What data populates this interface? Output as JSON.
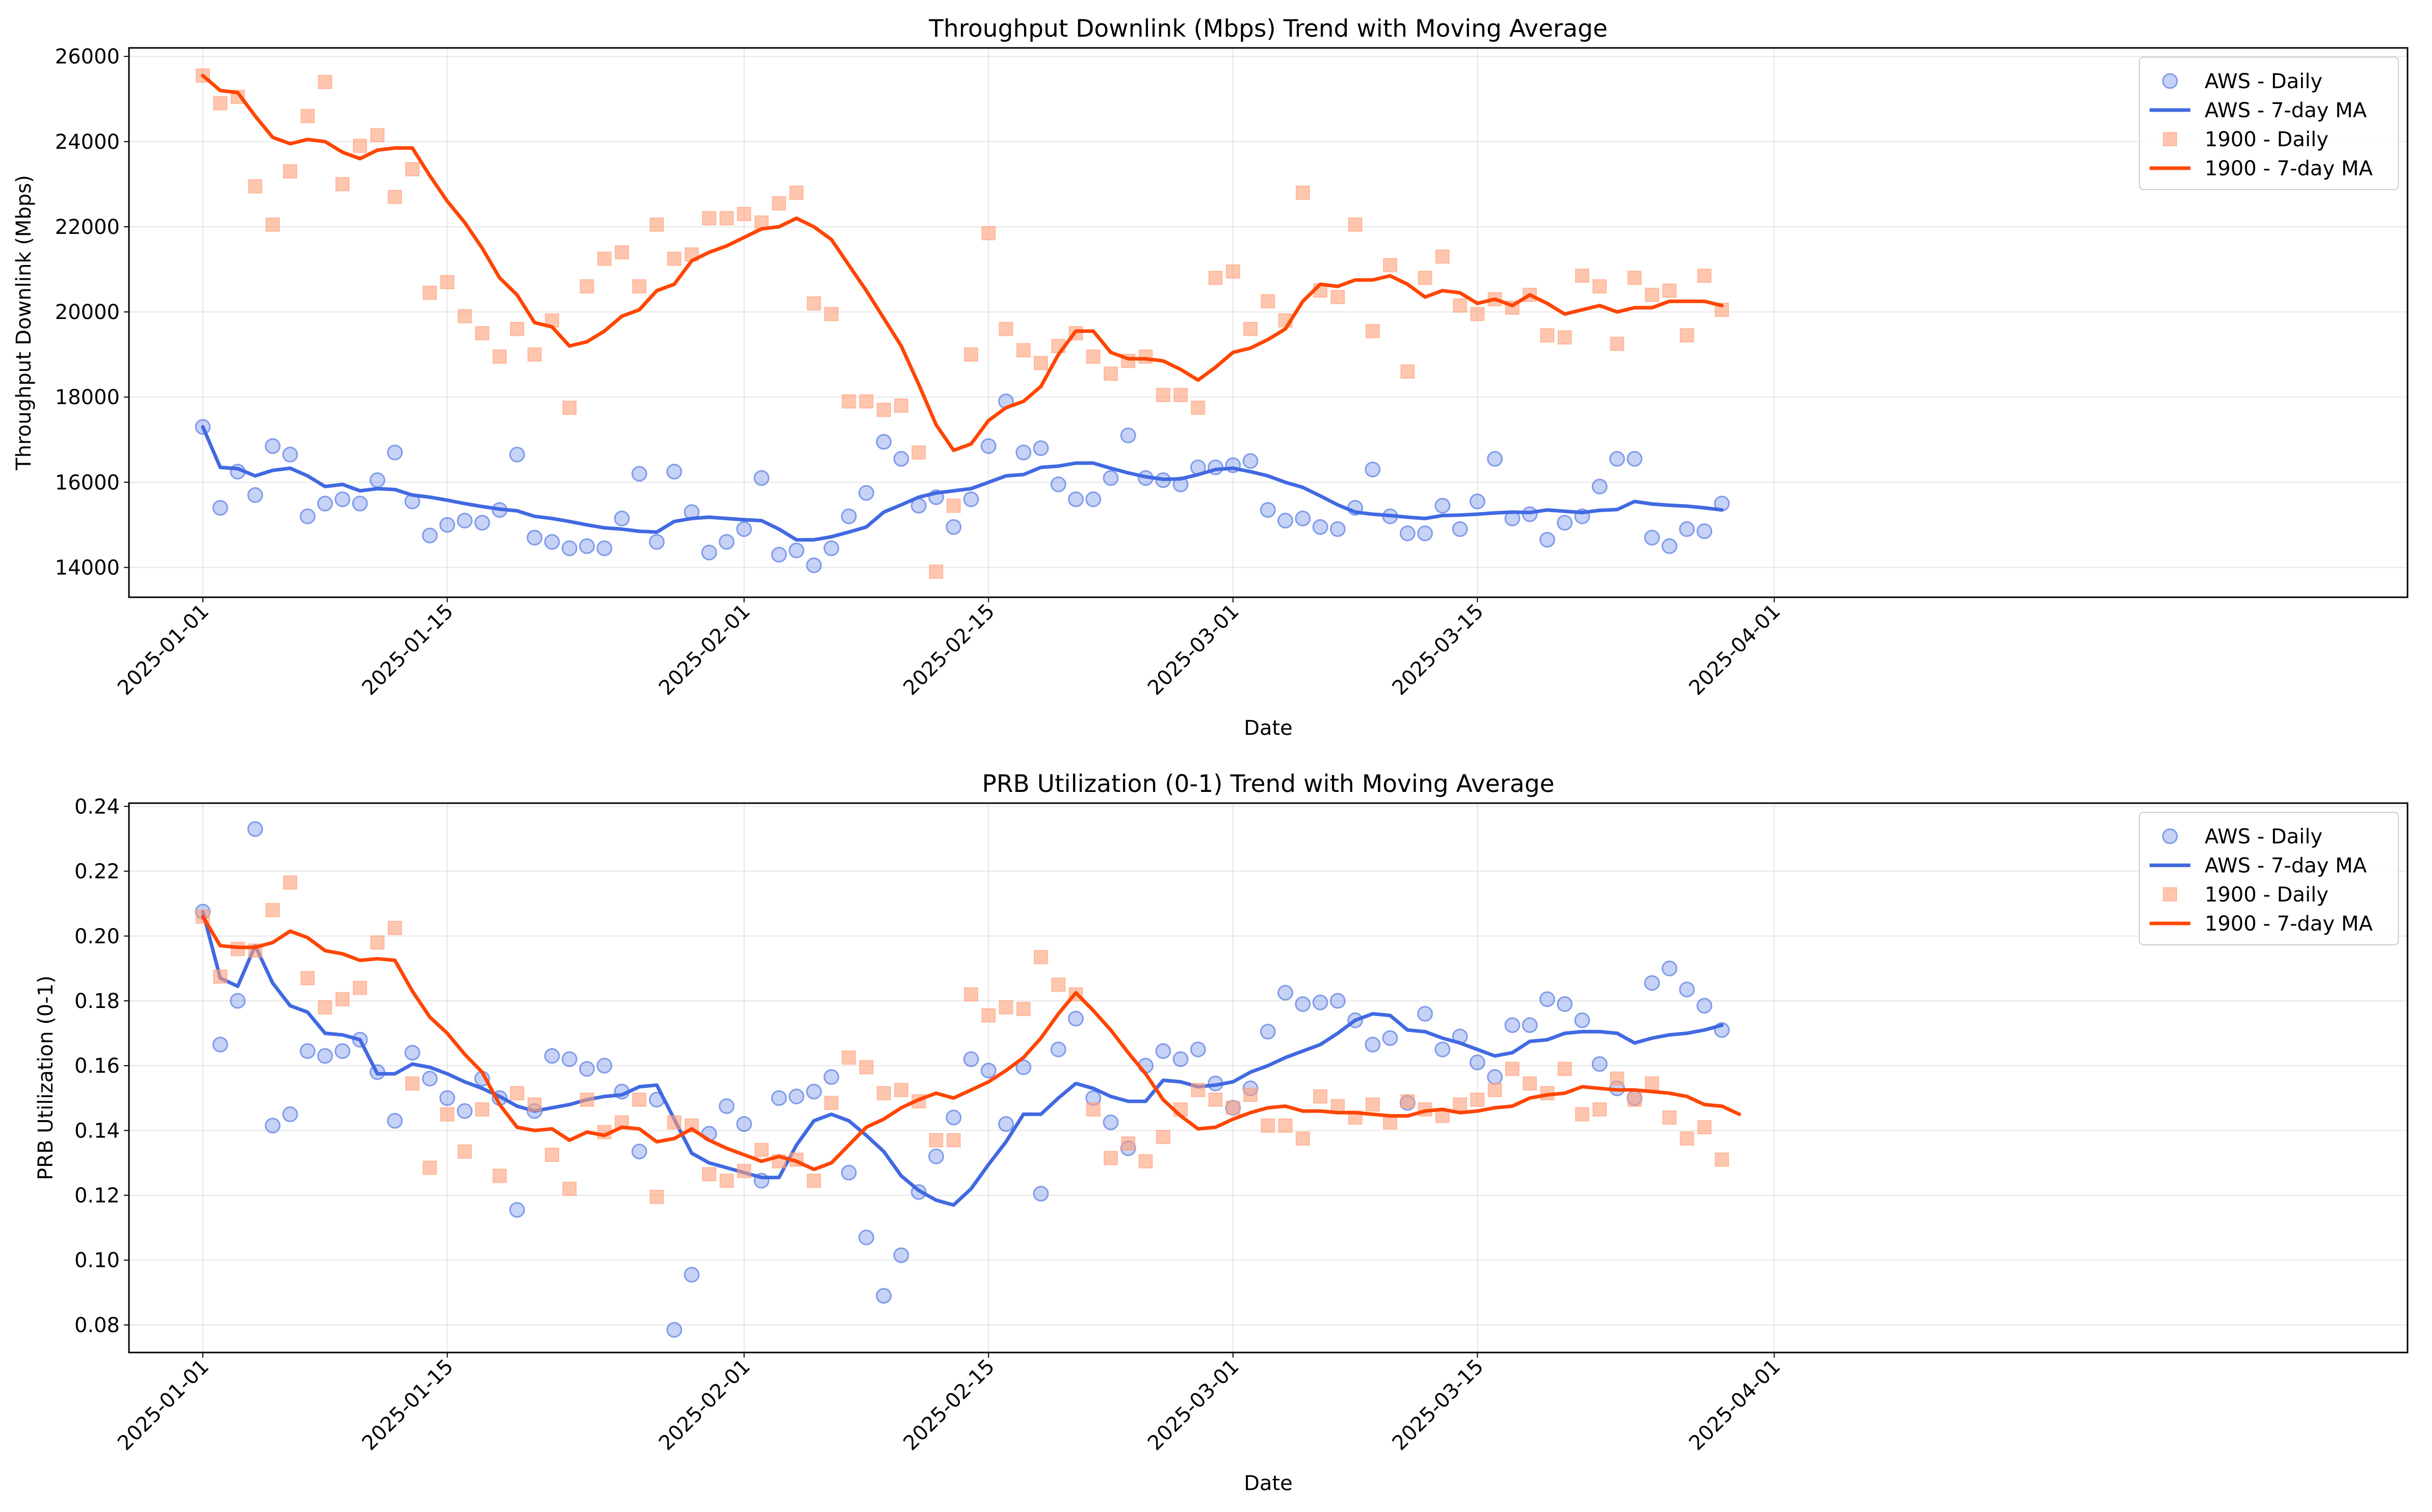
{
  "chart_data": [
    {
      "type": "line",
      "title": "Throughput Downlink (Mbps) Trend with Moving Average",
      "xlabel": "Date",
      "ylabel": "Throughput Downlink (Mbps)",
      "start_date": "2025-01-01",
      "x_ticks": [
        "2025-01-01",
        "2025-01-15",
        "2025-02-01",
        "2025-02-15",
        "2025-03-01",
        "2025-03-15",
        "2025-04-01"
      ],
      "y_ticks": [
        "14000",
        "16000",
        "18000",
        "20000",
        "22000",
        "24000",
        "26000"
      ],
      "ylim": [
        13300,
        26200
      ],
      "legend": "top-right",
      "grid": true,
      "series": [
        {
          "name": "AWS - Daily",
          "style": "scatter",
          "color": "#4169e1",
          "values": [
            17300,
            15400,
            16250,
            15700,
            16850,
            16650,
            15200,
            15500,
            15600,
            15500,
            16050,
            16700,
            15550,
            14750,
            15000,
            15100,
            15050,
            15350,
            16650,
            14700,
            14600,
            14450,
            14500,
            14450,
            15150,
            16200,
            14600,
            16250,
            15300,
            14350,
            14600,
            14900,
            16100,
            14300,
            14400,
            14050,
            14450,
            15200,
            15750,
            16950,
            16550,
            15450,
            15650,
            14950,
            15600,
            16850,
            17900,
            16700,
            16800,
            15950,
            15600,
            15600,
            16100,
            17100,
            16100,
            16050,
            15950,
            16350,
            16350,
            16400,
            16500,
            15350,
            15100,
            15150,
            14950,
            14900,
            15400,
            16300,
            15200,
            14800,
            14800,
            15450,
            14900,
            15550,
            16550,
            15150,
            15250,
            14650,
            15050,
            15200,
            15900,
            16550,
            16550,
            14700,
            14500,
            14900,
            14850,
            15500
          ]
        },
        {
          "name": "AWS - 7-day MA",
          "style": "line",
          "color": "#4169e1",
          "values": [
            17300,
            16350,
            16320,
            16150,
            16280,
            16330,
            16150,
            15900,
            15950,
            15800,
            15850,
            15830,
            15700,
            15650,
            15580,
            15500,
            15430,
            15370,
            15330,
            15200,
            15150,
            15080,
            15000,
            14930,
            14900,
            14850,
            14830,
            15080,
            15150,
            15180,
            15150,
            15120,
            15100,
            14900,
            14650,
            14650,
            14720,
            14830,
            14950,
            15300,
            15470,
            15650,
            15750,
            15800,
            15850,
            16000,
            16150,
            16180,
            16350,
            16380,
            16450,
            16450,
            16330,
            16220,
            16130,
            16070,
            16080,
            16180,
            16300,
            16330,
            16250,
            16150,
            16000,
            15880,
            15680,
            15470,
            15300,
            15250,
            15220,
            15180,
            15150,
            15220,
            15230,
            15250,
            15280,
            15300,
            15290,
            15350,
            15320,
            15290,
            15340,
            15360,
            15550,
            15490,
            15460,
            15440,
            15400,
            15350
          ]
        },
        {
          "name": "1900 - Daily",
          "style": "scatter",
          "color": "#ffa07a",
          "values": [
            25550,
            24900,
            25050,
            22950,
            22050,
            23300,
            24600,
            25400,
            23000,
            23900,
            24150,
            22700,
            23350,
            20450,
            20700,
            19900,
            19500,
            18950,
            19600,
            19000,
            19800,
            17750,
            20600,
            21250,
            21400,
            20600,
            22050,
            21250,
            21350,
            22200,
            22200,
            22300,
            22100,
            22550,
            22800,
            20200,
            19950,
            17900,
            17900,
            17700,
            17800,
            16700,
            13900,
            15450,
            19000,
            21850,
            19600,
            19100,
            18800,
            19200,
            19500,
            18950,
            18550,
            18850,
            18950,
            18050,
            18050,
            17750,
            20800,
            20950,
            19600,
            20250,
            19800,
            22800,
            20500,
            20350,
            22050,
            19550,
            21100,
            18600,
            20800,
            21300,
            20150,
            19950,
            20300,
            20100,
            20400,
            19450,
            19400,
            20850,
            20600,
            19250,
            20800,
            20400,
            20500,
            19450,
            20850,
            20050
          ]
        },
        {
          "name": "1900 - 7-day MA",
          "style": "line",
          "color": "#ff4500",
          "values": [
            25550,
            25200,
            25150,
            24600,
            24100,
            23950,
            24050,
            24000,
            23750,
            23600,
            23800,
            23850,
            23850,
            23200,
            22600,
            22100,
            21500,
            20800,
            20400,
            19750,
            19650,
            19200,
            19300,
            19550,
            19900,
            20050,
            20500,
            20650,
            21200,
            21400,
            21550,
            21750,
            21950,
            22000,
            22200,
            22000,
            21700,
            21100,
            20500,
            19850,
            19200,
            18300,
            17350,
            16750,
            16900,
            17450,
            17750,
            17900,
            18250,
            19000,
            19550,
            19550,
            19050,
            18900,
            18900,
            18850,
            18650,
            18400,
            18700,
            19050,
            19150,
            19350,
            19600,
            20250,
            20650,
            20600,
            20750,
            20750,
            20850,
            20650,
            20350,
            20500,
            20450,
            20200,
            20300,
            20150,
            20400,
            20200,
            19950,
            20050,
            20150,
            20000,
            20100,
            20100,
            20250,
            20250,
            20250,
            20150
          ]
        }
      ]
    },
    {
      "type": "line",
      "title": "PRB Utilization (0-1) Trend with Moving Average",
      "xlabel": "Date",
      "ylabel": "PRB Utilization (0-1)",
      "start_date": "2025-01-01",
      "x_ticks": [
        "2025-01-01",
        "2025-01-15",
        "2025-02-01",
        "2025-02-15",
        "2025-03-01",
        "2025-03-15",
        "2025-04-01"
      ],
      "y_ticks": [
        "0.08",
        "0.10",
        "0.12",
        "0.14",
        "0.16",
        "0.18",
        "0.20",
        "0.22",
        "0.24"
      ],
      "ylim": [
        0.0715,
        0.241
      ],
      "legend": "top-right",
      "grid": true,
      "series": [
        {
          "name": "AWS - Daily",
          "style": "scatter",
          "color": "#4169e1",
          "values": [
            0.2075,
            0.1665,
            0.18,
            0.233,
            0.1415,
            0.145,
            0.1645,
            0.163,
            0.1645,
            0.168,
            0.158,
            0.143,
            0.164,
            0.156,
            0.15,
            0.146,
            0.156,
            0.15,
            0.1155,
            0.146,
            0.163,
            0.162,
            0.159,
            0.16,
            0.152,
            0.1335,
            0.1495,
            0.0785,
            0.0955,
            0.139,
            0.1475,
            0.142,
            0.1245,
            0.15,
            0.1505,
            0.152,
            0.1565,
            0.127,
            0.107,
            0.089,
            0.1015,
            0.121,
            0.132,
            0.144,
            0.162,
            0.1585,
            0.142,
            0.1595,
            0.1205,
            0.165,
            0.1745,
            0.15,
            0.1425,
            0.1345,
            0.16,
            0.1645,
            0.162,
            0.165,
            0.1545,
            0.147,
            0.153,
            0.1705,
            0.1825,
            0.179,
            0.1795,
            0.18,
            0.174,
            0.1665,
            0.1685,
            0.1485,
            0.176,
            0.165,
            0.169,
            0.161,
            0.1565,
            0.1725,
            0.1725,
            0.1805,
            0.179,
            0.174,
            0.1605,
            0.153,
            0.15,
            0.1855,
            0.19,
            0.1835,
            0.1785,
            0.171
          ]
        },
        {
          "name": "AWS - 7-day MA",
          "style": "line",
          "color": "#4169e1",
          "values": [
            0.2075,
            0.187,
            0.1845,
            0.197,
            0.1855,
            0.1785,
            0.1765,
            0.17,
            0.1695,
            0.168,
            0.1575,
            0.1575,
            0.1605,
            0.1595,
            0.1575,
            0.155,
            0.153,
            0.1505,
            0.1475,
            0.146,
            0.147,
            0.148,
            0.1495,
            0.1505,
            0.151,
            0.1535,
            0.154,
            0.1435,
            0.133,
            0.13,
            0.1285,
            0.127,
            0.1255,
            0.1255,
            0.1355,
            0.143,
            0.145,
            0.143,
            0.1385,
            0.1335,
            0.126,
            0.1215,
            0.1185,
            0.117,
            0.122,
            0.1295,
            0.1365,
            0.145,
            0.145,
            0.15,
            0.1545,
            0.153,
            0.1505,
            0.149,
            0.149,
            0.1555,
            0.155,
            0.1535,
            0.154,
            0.155,
            0.158,
            0.16,
            0.1625,
            0.1645,
            0.1665,
            0.17,
            0.174,
            0.176,
            0.1755,
            0.171,
            0.1705,
            0.1685,
            0.167,
            0.165,
            0.163,
            0.164,
            0.1675,
            0.168,
            0.17,
            0.1705,
            0.1705,
            0.17,
            0.167,
            0.1685,
            0.1695,
            0.17,
            0.171,
            0.1725
          ]
        },
        {
          "name": "1900 - Daily",
          "style": "scatter",
          "color": "#ffa07a",
          "values": [
            0.206,
            0.1875,
            0.196,
            0.1955,
            0.208,
            0.2165,
            0.187,
            0.178,
            0.1805,
            0.184,
            0.198,
            0.2025,
            0.1545,
            0.1285,
            0.145,
            0.1335,
            0.1465,
            0.126,
            0.1515,
            0.148,
            0.1325,
            0.122,
            0.1495,
            0.1395,
            0.1425,
            0.1495,
            0.1195,
            0.1425,
            0.1415,
            0.1265,
            0.1245,
            0.1275,
            0.134,
            0.1305,
            0.131,
            0.1245,
            0.1485,
            0.1625,
            0.1595,
            0.1515,
            0.1525,
            0.149,
            0.137,
            0.137,
            0.182,
            0.1755,
            0.178,
            0.1775,
            0.1935,
            0.185,
            0.182,
            0.1465,
            0.1315,
            0.136,
            0.1305,
            0.138,
            0.1465,
            0.1525,
            0.1495,
            0.147,
            0.151,
            0.1415,
            0.1415,
            0.1375,
            0.1505,
            0.1475,
            0.144,
            0.148,
            0.1425,
            0.149,
            0.1465,
            0.1445,
            0.148,
            0.1495,
            0.1525,
            0.159,
            0.1545,
            0.1515,
            0.159,
            0.145,
            0.1465,
            0.156,
            0.1495,
            0.1545,
            0.144,
            0.1375,
            0.141,
            0.131
          ]
        },
        {
          "name": "1900 - 7-day MA",
          "style": "line",
          "color": "#ff4500",
          "values": [
            0.206,
            0.197,
            0.1965,
            0.1965,
            0.198,
            0.2015,
            0.1995,
            0.1955,
            0.1945,
            0.1925,
            0.193,
            0.1925,
            0.183,
            0.175,
            0.17,
            0.1635,
            0.158,
            0.148,
            0.141,
            0.14,
            0.1405,
            0.137,
            0.1395,
            0.1385,
            0.141,
            0.1405,
            0.1365,
            0.1375,
            0.1405,
            0.137,
            0.1345,
            0.1325,
            0.1305,
            0.132,
            0.1305,
            0.128,
            0.13,
            0.1355,
            0.141,
            0.1435,
            0.147,
            0.1495,
            0.1515,
            0.15,
            0.1525,
            0.155,
            0.1585,
            0.1625,
            0.1685,
            0.176,
            0.1825,
            0.177,
            0.171,
            0.164,
            0.1575,
            0.1495,
            0.1445,
            0.1405,
            0.141,
            0.1435,
            0.1455,
            0.147,
            0.1475,
            0.146,
            0.146,
            0.1455,
            0.1455,
            0.145,
            0.1445,
            0.1445,
            0.146,
            0.1465,
            0.1455,
            0.146,
            0.147,
            0.1475,
            0.15,
            0.151,
            0.1515,
            0.1535,
            0.153,
            0.1525,
            0.1525,
            0.152,
            0.1515,
            0.1505,
            0.148,
            0.1475,
            0.145
          ]
        }
      ]
    }
  ]
}
